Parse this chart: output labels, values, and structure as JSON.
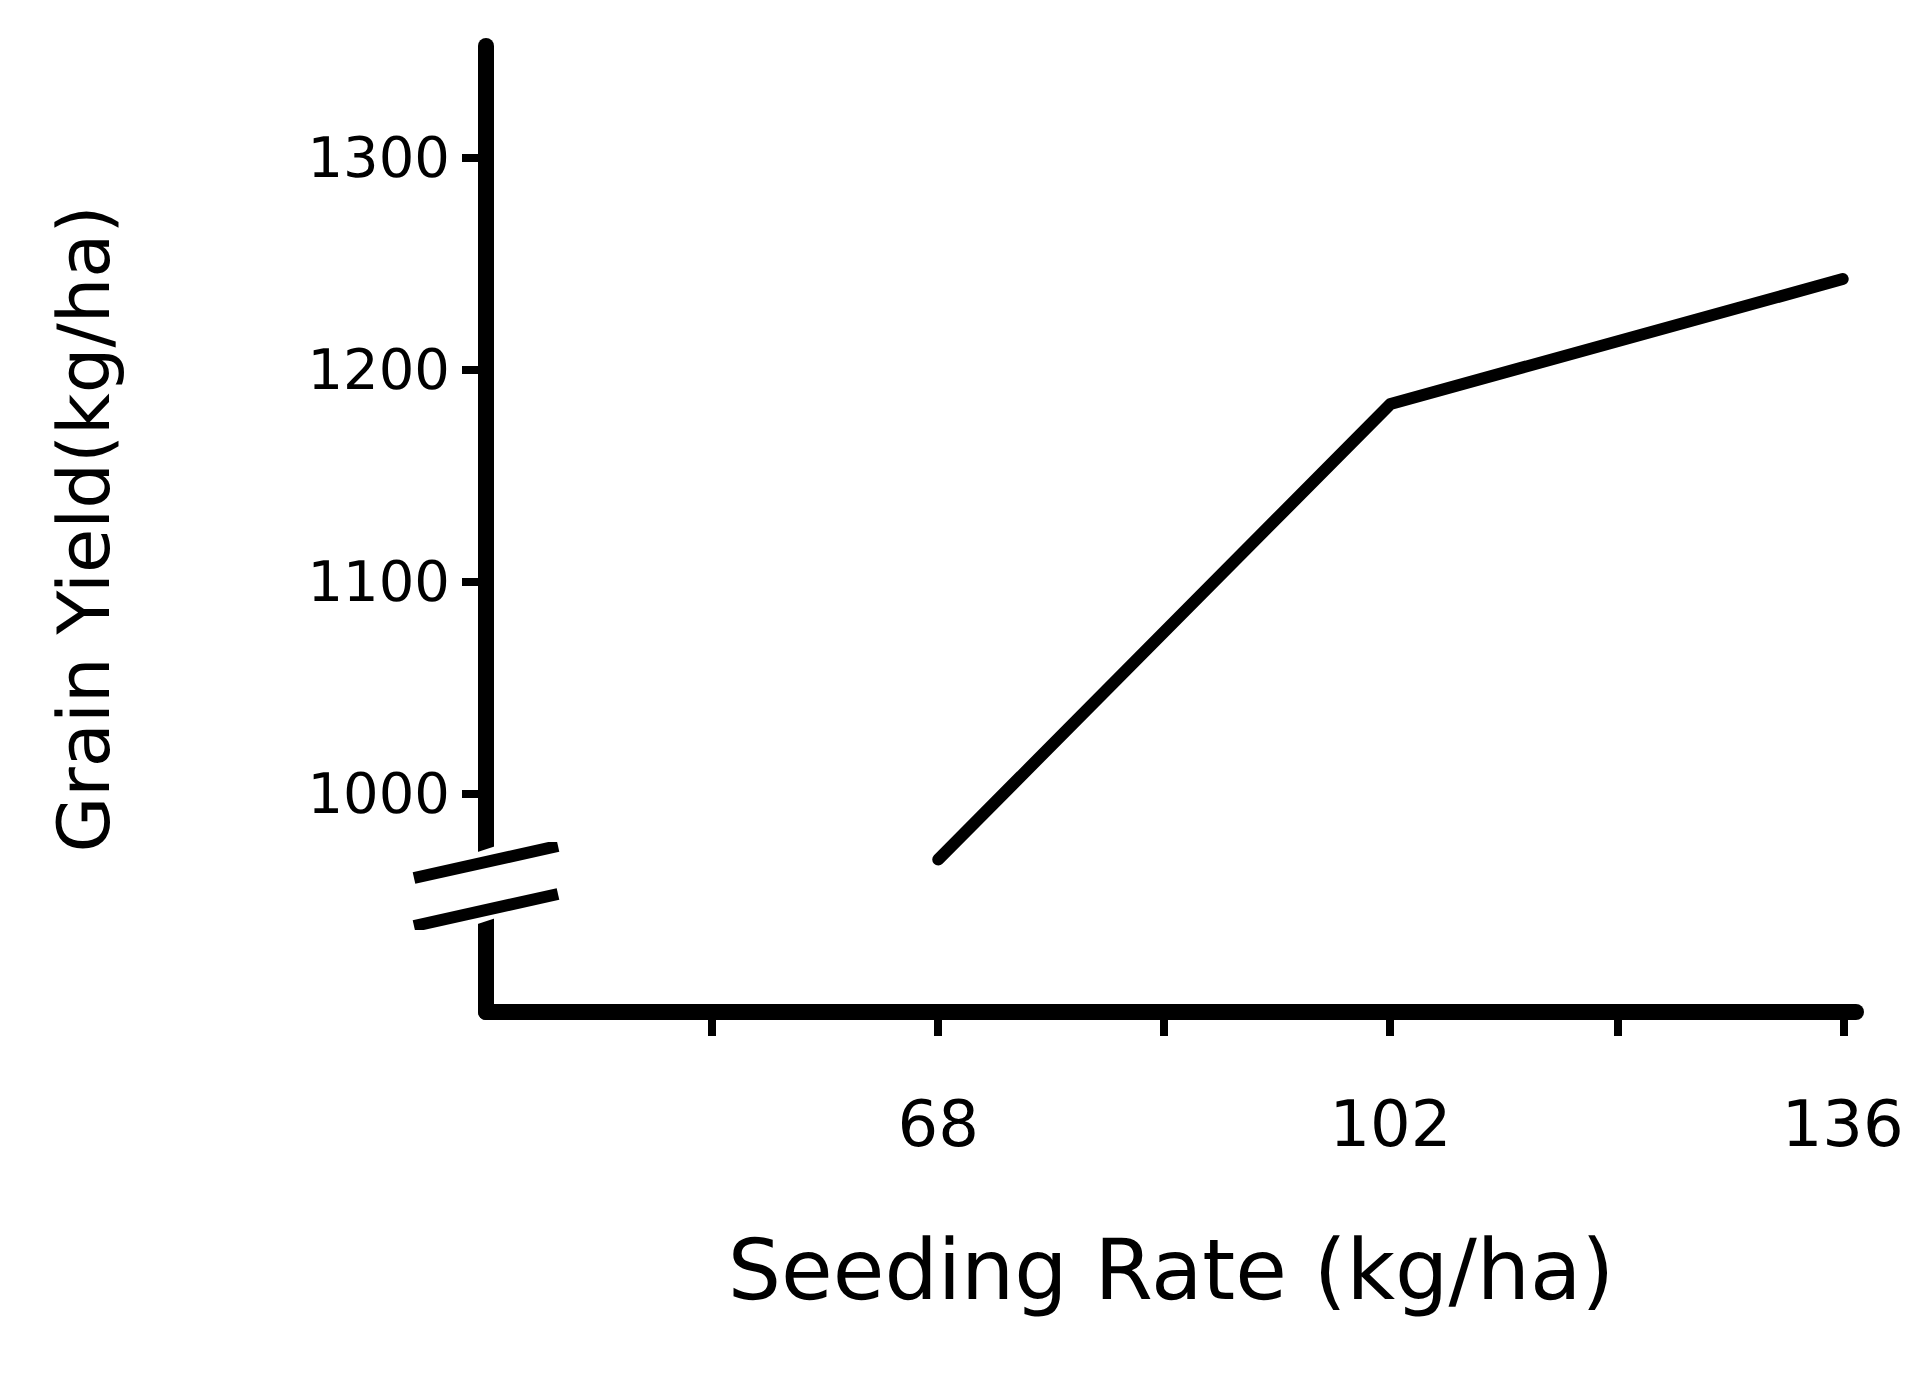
{
  "chart_data": {
    "type": "line",
    "xlabel": "Seeding Rate (kg/ha)",
    "ylabel": "Grain Yield(kg/ha)",
    "x": [
      68,
      102,
      136
    ],
    "series": [
      {
        "color": "#000000",
        "values": [
          969,
          1184,
          1243
        ]
      }
    ],
    "xlim": [
      34,
      137
    ],
    "xticks": [
      {
        "value": 51,
        "label": null
      },
      68,
      {
        "value": 85,
        "label": null
      },
      102,
      {
        "value": 119,
        "label": null
      },
      136
    ],
    "ylim": [
      897,
      1353
    ],
    "yticks": [
      1000,
      1100,
      1200,
      1300
    ],
    "grid": false,
    "marker": "none",
    "line_style": "solid"
  }
}
